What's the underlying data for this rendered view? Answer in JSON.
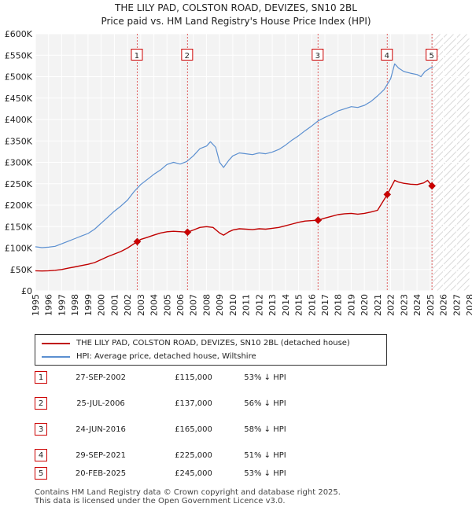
{
  "chart_data": {
    "type": "line",
    "title": "THE LILY PAD, COLSTON ROAD, DEVIZES, SN10 2BL",
    "subtitle": "Price paid vs. HM Land Registry's House Price Index (HPI)",
    "xlim": [
      1995,
      2028
    ],
    "ylim": [
      0,
      600000
    ],
    "x_ticks": [
      "1995",
      "1996",
      "1997",
      "1998",
      "1999",
      "2000",
      "2001",
      "2002",
      "2003",
      "2004",
      "2005",
      "2006",
      "2007",
      "2008",
      "2009",
      "2010",
      "2011",
      "2012",
      "2013",
      "2014",
      "2015",
      "2016",
      "2017",
      "2018",
      "2019",
      "2020",
      "2021",
      "2022",
      "2023",
      "2024",
      "2025",
      "2026",
      "2027",
      "2028"
    ],
    "y_ticks": [
      {
        "value": 0,
        "label": "£0"
      },
      {
        "value": 50000,
        "label": "£50K"
      },
      {
        "value": 100000,
        "label": "£100K"
      },
      {
        "value": 150000,
        "label": "£150K"
      },
      {
        "value": 200000,
        "label": "£200K"
      },
      {
        "value": 250000,
        "label": "£250K"
      },
      {
        "value": 300000,
        "label": "£300K"
      },
      {
        "value": 350000,
        "label": "£350K"
      },
      {
        "value": 400000,
        "label": "£400K"
      },
      {
        "value": 450000,
        "label": "£450K"
      },
      {
        "value": 500000,
        "label": "£500K"
      },
      {
        "value": 550000,
        "label": "£550K"
      },
      {
        "value": 600000,
        "label": "£600K"
      }
    ],
    "grid": true,
    "forecast_from": 2025.2,
    "series": [
      {
        "name": "HPI: Average price, detached house, Wiltshire",
        "color": "#5b8fd0",
        "points": [
          [
            1995,
            103000
          ],
          [
            1995.5,
            101000
          ],
          [
            1996,
            102000
          ],
          [
            1996.5,
            104000
          ],
          [
            1997,
            110000
          ],
          [
            1997.5,
            116000
          ],
          [
            1998,
            122000
          ],
          [
            1998.5,
            128000
          ],
          [
            1999,
            134000
          ],
          [
            1999.5,
            144000
          ],
          [
            2000,
            158000
          ],
          [
            2000.5,
            172000
          ],
          [
            2001,
            186000
          ],
          [
            2001.5,
            198000
          ],
          [
            2002,
            212000
          ],
          [
            2002.5,
            232000
          ],
          [
            2003,
            248000
          ],
          [
            2003.5,
            260000
          ],
          [
            2004,
            272000
          ],
          [
            2004.5,
            282000
          ],
          [
            2005,
            295000
          ],
          [
            2005.5,
            300000
          ],
          [
            2006,
            296000
          ],
          [
            2006.5,
            302000
          ],
          [
            2007,
            315000
          ],
          [
            2007.5,
            332000
          ],
          [
            2008,
            338000
          ],
          [
            2008.3,
            348000
          ],
          [
            2008.7,
            335000
          ],
          [
            2009,
            300000
          ],
          [
            2009.3,
            288000
          ],
          [
            2009.7,
            305000
          ],
          [
            2010,
            315000
          ],
          [
            2010.5,
            322000
          ],
          [
            2011,
            320000
          ],
          [
            2011.5,
            318000
          ],
          [
            2012,
            322000
          ],
          [
            2012.5,
            320000
          ],
          [
            2013,
            324000
          ],
          [
            2013.5,
            330000
          ],
          [
            2014,
            340000
          ],
          [
            2014.5,
            352000
          ],
          [
            2015,
            362000
          ],
          [
            2015.5,
            374000
          ],
          [
            2016,
            385000
          ],
          [
            2016.5,
            397000
          ],
          [
            2017,
            405000
          ],
          [
            2017.5,
            412000
          ],
          [
            2018,
            420000
          ],
          [
            2018.5,
            425000
          ],
          [
            2019,
            430000
          ],
          [
            2019.5,
            428000
          ],
          [
            2020,
            433000
          ],
          [
            2020.5,
            442000
          ],
          [
            2021,
            455000
          ],
          [
            2021.5,
            470000
          ],
          [
            2022,
            495000
          ],
          [
            2022.3,
            530000
          ],
          [
            2022.6,
            520000
          ],
          [
            2023,
            512000
          ],
          [
            2023.5,
            508000
          ],
          [
            2024,
            505000
          ],
          [
            2024.3,
            500000
          ],
          [
            2024.6,
            512000
          ],
          [
            2025,
            520000
          ],
          [
            2025.2,
            523000
          ]
        ]
      },
      {
        "name": "THE LILY PAD, COLSTON ROAD, DEVIZES, SN10 2BL (detached house)",
        "color": "#c00000",
        "points": [
          [
            1995,
            47000
          ],
          [
            1995.5,
            46500
          ],
          [
            1996,
            47000
          ],
          [
            1996.5,
            48000
          ],
          [
            1997,
            50000
          ],
          [
            1997.5,
            53000
          ],
          [
            1998,
            56000
          ],
          [
            1998.5,
            59000
          ],
          [
            1999,
            62000
          ],
          [
            1999.5,
            66000
          ],
          [
            2000,
            73000
          ],
          [
            2000.5,
            80000
          ],
          [
            2001,
            86000
          ],
          [
            2001.5,
            92000
          ],
          [
            2002,
            100000
          ],
          [
            2002.74,
            115000
          ],
          [
            2003,
            120000
          ],
          [
            2003.5,
            125000
          ],
          [
            2004,
            130000
          ],
          [
            2004.5,
            135000
          ],
          [
            2005,
            138000
          ],
          [
            2005.5,
            139000
          ],
          [
            2006.56,
            137000
          ],
          [
            2007,
            142000
          ],
          [
            2007.5,
            148000
          ],
          [
            2008,
            150000
          ],
          [
            2008.5,
            148000
          ],
          [
            2009,
            135000
          ],
          [
            2009.3,
            130000
          ],
          [
            2009.7,
            138000
          ],
          [
            2010,
            142000
          ],
          [
            2010.5,
            145000
          ],
          [
            2011,
            144000
          ],
          [
            2011.5,
            143000
          ],
          [
            2012,
            145000
          ],
          [
            2012.5,
            144000
          ],
          [
            2013,
            146000
          ],
          [
            2013.5,
            148000
          ],
          [
            2014,
            152000
          ],
          [
            2014.5,
            156000
          ],
          [
            2015,
            160000
          ],
          [
            2015.5,
            163000
          ],
          [
            2016.48,
            165000
          ],
          [
            2017,
            170000
          ],
          [
            2017.5,
            174000
          ],
          [
            2018,
            178000
          ],
          [
            2018.5,
            180000
          ],
          [
            2019,
            181000
          ],
          [
            2019.5,
            179000
          ],
          [
            2020,
            181000
          ],
          [
            2020.5,
            184000
          ],
          [
            2021,
            188000
          ],
          [
            2021.74,
            225000
          ],
          [
            2022,
            240000
          ],
          [
            2022.3,
            258000
          ],
          [
            2022.6,
            254000
          ],
          [
            2023,
            251000
          ],
          [
            2023.5,
            249000
          ],
          [
            2024,
            248000
          ],
          [
            2024.5,
            252000
          ],
          [
            2024.8,
            258000
          ],
          [
            2025.14,
            245000
          ]
        ]
      }
    ],
    "sales": [
      {
        "id": "1",
        "x": 2002.74,
        "value": 115000
      },
      {
        "id": "2",
        "x": 2006.56,
        "value": 137000
      },
      {
        "id": "3",
        "x": 2016.48,
        "value": 165000
      },
      {
        "id": "4",
        "x": 2021.74,
        "value": 225000
      },
      {
        "id": "5",
        "x": 2025.14,
        "value": 245000
      }
    ]
  },
  "legend": {
    "property": "THE LILY PAD, COLSTON ROAD, DEVIZES, SN10 2BL (detached house)",
    "hpi": "HPI: Average price, detached house, Wiltshire"
  },
  "transactions": [
    {
      "id": "1",
      "date": "27-SEP-2002",
      "price": "£115,000",
      "vs_hpi": "53% ↓ HPI"
    },
    {
      "id": "2",
      "date": "25-JUL-2006",
      "price": "£137,000",
      "vs_hpi": "56% ↓ HPI"
    },
    {
      "id": "3",
      "date": "24-JUN-2016",
      "price": "£165,000",
      "vs_hpi": "58% ↓ HPI"
    },
    {
      "id": "4",
      "date": "29-SEP-2021",
      "price": "£225,000",
      "vs_hpi": "51% ↓ HPI"
    },
    {
      "id": "5",
      "date": "20-FEB-2025",
      "price": "£245,000",
      "vs_hpi": "53% ↓ HPI"
    }
  ],
  "footer": {
    "line1": "Contains HM Land Registry data © Crown copyright and database right 2025.",
    "line2": "This data is licensed under the Open Government Licence v3.0."
  },
  "colors": {
    "property": "#c00000",
    "hpi": "#5b8fd0",
    "marker_border": "#cc0000"
  }
}
